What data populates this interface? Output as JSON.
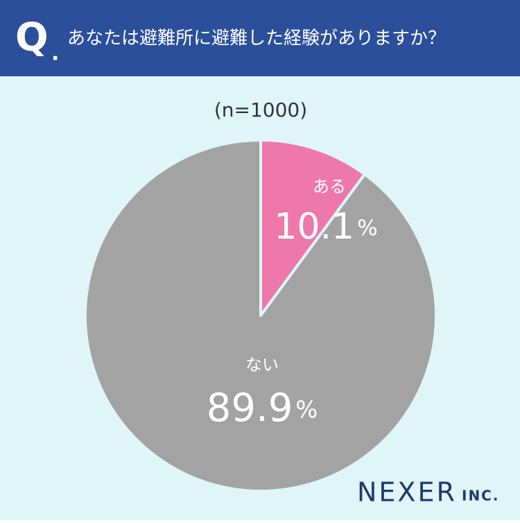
{
  "header": {
    "q_mark": "Q",
    "q_dot": ".",
    "title": "あなたは避難所に避難した経験がありますか？"
  },
  "chart_data": {
    "type": "pie",
    "subtitle": "(n=1000)",
    "categories": [
      "ある",
      "ない"
    ],
    "values": [
      10.1,
      89.9
    ],
    "value_labels": [
      "10.1%",
      "89.9%"
    ],
    "colors": [
      "#ee78ab",
      "#a3a3a3"
    ]
  },
  "logo": {
    "name": "NEXER",
    "suffix": "INC."
  }
}
